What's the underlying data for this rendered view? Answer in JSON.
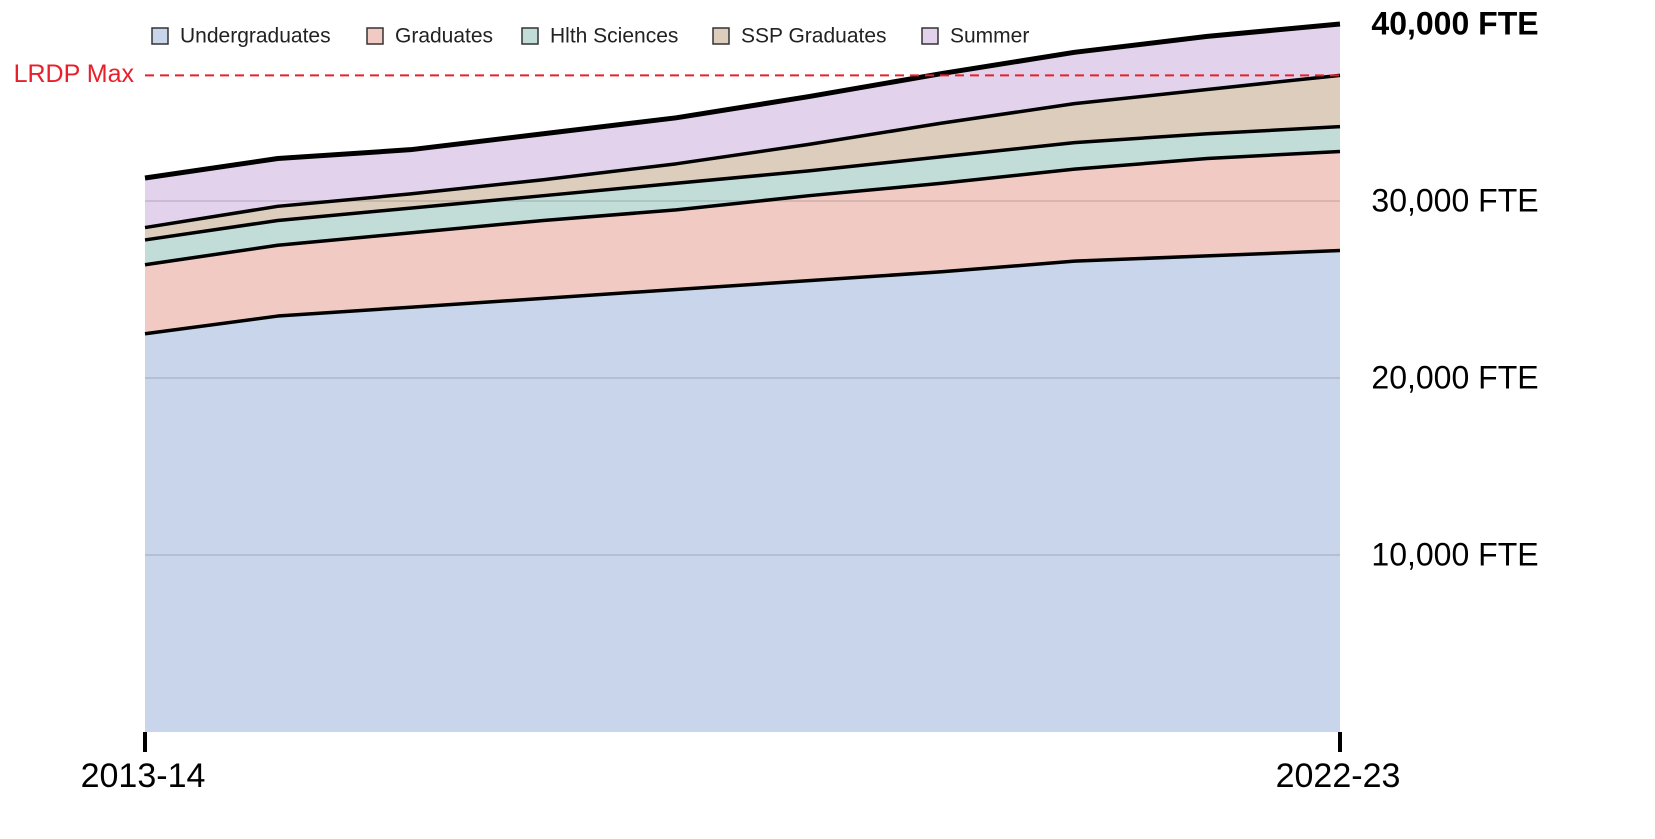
{
  "chart_data": {
    "type": "stacked_area",
    "categories": [
      "2013-14",
      null,
      null,
      null,
      null,
      null,
      null,
      null,
      null,
      "2022-23"
    ],
    "series": [
      {
        "name": "Undergraduates",
        "color": "#c9d5ea",
        "values": [
          22500,
          23500,
          24000,
          24500,
          25000,
          25500,
          26000,
          26600,
          26900,
          27200
        ]
      },
      {
        "name": "Graduates",
        "color": "#f2cac4",
        "values": [
          3900,
          4000,
          4200,
          4400,
          4500,
          4800,
          5000,
          5200,
          5500,
          5600
        ]
      },
      {
        "name": "Hlth Sciences",
        "color": "#c2ddd8",
        "values": [
          1400,
          1400,
          1400,
          1400,
          1500,
          1400,
          1500,
          1500,
          1400,
          1400
        ]
      },
      {
        "name": "SSP Graduates",
        "color": "#dccdbc",
        "values": [
          700,
          800,
          800,
          900,
          1100,
          1500,
          1900,
          2200,
          2500,
          2900
        ]
      },
      {
        "name": "Summer",
        "color": "#e3d2eb",
        "values": [
          2800,
          2700,
          2500,
          2600,
          2600,
          2700,
          2800,
          2900,
          3000,
          2900
        ]
      }
    ],
    "ylim": [
      0,
      40000
    ],
    "yticks": [
      {
        "value": 10000,
        "label": "10,000 FTE"
      },
      {
        "value": 20000,
        "label": "20,000 FTE"
      },
      {
        "value": 30000,
        "label": "30,000 FTE"
      },
      {
        "value": 40000,
        "label": "40,000 FTE"
      }
    ],
    "grid": true,
    "legend": "top",
    "reference_line": {
      "label": "LRDP Max",
      "value": 37100,
      "color": "#e8202a"
    }
  }
}
